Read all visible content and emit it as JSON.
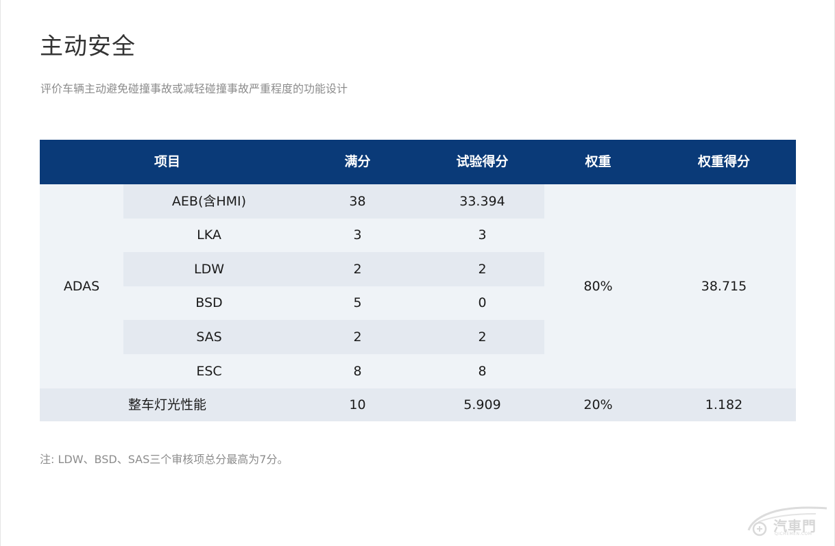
{
  "section": {
    "title": "主动安全",
    "subtitle": "评价车辆主动避免碰撞事故或减轻碰撞事故严重程度的功能设计"
  },
  "table": {
    "headers": [
      "项目",
      "满分",
      "试验得分",
      "权重",
      "权重得分"
    ],
    "adas": {
      "label": "ADAS",
      "items": [
        {
          "name": "AEB(含HMI)",
          "full": "38",
          "score": "33.394"
        },
        {
          "name": "LKA",
          "full": "3",
          "score": "3"
        },
        {
          "name": "LDW",
          "full": "2",
          "score": "2"
        },
        {
          "name": "BSD",
          "full": "5",
          "score": "0"
        },
        {
          "name": "SAS",
          "full": "2",
          "score": "2"
        },
        {
          "name": "ESC",
          "full": "8",
          "score": "8"
        }
      ],
      "weight": "80%",
      "weighted_score": "38.715"
    },
    "lighting": {
      "name": "整车灯光性能",
      "full": "10",
      "score": "5.909",
      "weight": "20%",
      "weighted_score": "1.182"
    }
  },
  "note": "注: LDW、BSD、SAS三个审核项总分最高为7分。",
  "watermark": {
    "brand": "汽車門",
    "sub": "QICHEMEN.COM"
  },
  "colors": {
    "header_bg": "#0a3a78",
    "row_dark": "#e4e9f0",
    "row_light": "#eff3f7"
  }
}
